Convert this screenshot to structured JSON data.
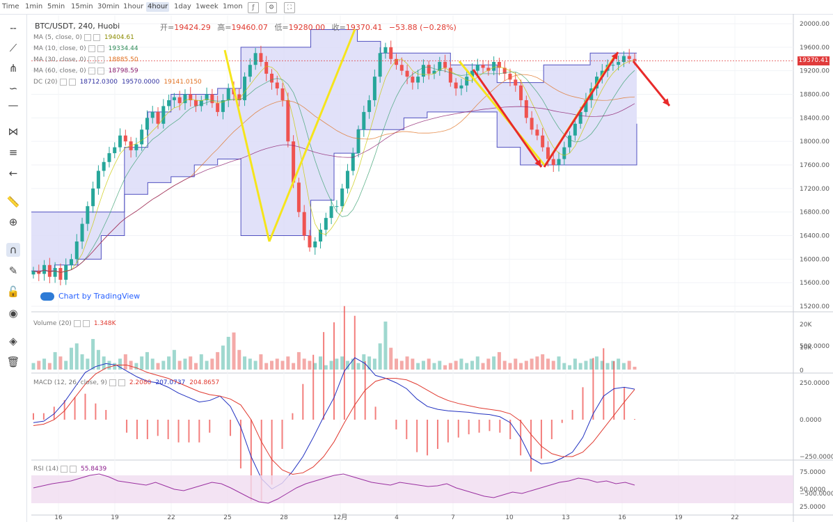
{
  "toolbar": {
    "timeframes": [
      "Time",
      "1min",
      "5min",
      "15min",
      "30min",
      "1hour",
      "4hour",
      "1day",
      "1week",
      "1mon"
    ],
    "active_timeframe": "4hour",
    "icons": [
      "indicators-icon",
      "settings-icon",
      "fullscreen-icon"
    ]
  },
  "left_tools": [
    "crosshair-icon",
    "trendline-icon",
    "pitchfork-icon",
    "brush-icon",
    "horizontal-line-icon",
    "pattern-icon",
    "fibonacci-icon",
    "arrow-back-icon",
    "ruler-icon",
    "zoom-icon",
    "magnet-icon",
    "lock-drawing-icon",
    "unlock-icon",
    "eye-icon",
    "layers-icon",
    "trash-icon"
  ],
  "header": {
    "pair": "BTC/USDT, 240, Huobi",
    "open_label": "开=",
    "open": "19424.29",
    "high_label": "高=",
    "high": "19460.07",
    "low_label": "低=",
    "low": "19280.00",
    "close_label": "收=",
    "close": "19370.41",
    "change": "−53.88 (−0.28%)"
  },
  "legend": [
    {
      "name": "MA (5, close, 0)",
      "value": "19404.61",
      "color": "#8b8b00"
    },
    {
      "name": "MA (10, close, 0)",
      "value": "19334.44",
      "color": "#2e8b57"
    },
    {
      "name": "MA (30, close, 0)",
      "value": "18885.50",
      "color": "#e07020"
    },
    {
      "name": "MA (60, close, 0)",
      "value": "18798.59",
      "color": "#8b1a6b"
    },
    {
      "name": "DC (20)",
      "value": "18712.0300",
      "value2": "19570.0000",
      "value3": "19141.0150",
      "color": "#3030a0"
    }
  ],
  "price_axis": [
    "20000.00",
    "19600.00",
    "19200.00",
    "18800.00",
    "18400.00",
    "18000.00",
    "17600.00",
    "17200.00",
    "16800.00",
    "16400.00",
    "16000.00",
    "15600.00",
    "15200.00"
  ],
  "last_price": "19370.41",
  "volume": {
    "label": "Volume (20)",
    "value": "1.348K",
    "axis": [
      "20K",
      "10K",
      "0"
    ]
  },
  "macd": {
    "label": "MACD (12, 26, close, 9)",
    "v1": "2.2080",
    "v2": "207.0737",
    "v3": "204.8657",
    "axis": [
      "500.0000",
      "250.0000",
      "0.0000",
      "−250.0000",
      "−500.0000"
    ]
  },
  "rsi": {
    "label": "RSI (14)",
    "value": "55.8439",
    "axis": [
      "75.0000",
      "50.0000",
      "25.0000"
    ]
  },
  "time_axis": [
    "16",
    "19",
    "22",
    "25",
    "28",
    "12月",
    "4",
    "7",
    "10",
    "13",
    "16",
    "19",
    "22"
  ],
  "watermark": "Chart by TradingView",
  "colors": {
    "up": "#26a69a",
    "down": "#ef5350",
    "channel_fill": "#dcdcf8",
    "channel_line": "#5050c0",
    "annotation_yellow": "#f5e51c",
    "annotation_red": "#e82a2a"
  },
  "chart_data": {
    "type": "candlestick",
    "close_series": [
      15800,
      15750,
      15900,
      15700,
      15850,
      15650,
      15900,
      16000,
      16300,
      16600,
      16900,
      17200,
      17500,
      17650,
      17800,
      17900,
      18100,
      18000,
      17850,
      17950,
      18200,
      18400,
      18500,
      18300,
      18600,
      18700,
      18750,
      18650,
      18800,
      18700,
      18600,
      18700,
      18800,
      18650,
      18500,
      18700,
      18900,
      18800,
      18700,
      19100,
      19300,
      19500,
      19350,
      19150,
      19000,
      18900,
      18700,
      18000,
      17300,
      16800,
      16400,
      16200,
      16300,
      16500,
      16700,
      16900,
      16900,
      17200,
      17500,
      17800,
      18200,
      18500,
      18700,
      19100,
      19500,
      19600,
      19400,
      19300,
      19200,
      19100,
      19000,
      19100,
      19300,
      19150,
      19200,
      19350,
      19250,
      19000,
      18900,
      18950,
      19100,
      19200,
      19300,
      19250,
      19200,
      19350,
      19250,
      19150,
      19050,
      18950,
      18700,
      18400,
      18200,
      18100,
      17900,
      17700,
      17600,
      17700,
      17900,
      18100,
      18300,
      18500,
      18700,
      18900,
      19100,
      19200,
      19300,
      19300,
      19350,
      19450,
      19400,
      19370
    ],
    "donchian_upper": [
      16800,
      16800,
      16800,
      16800,
      17900,
      18500,
      18800,
      18800,
      18900,
      19600,
      19600,
      19600,
      19900,
      19900,
      19700,
      19500,
      19500,
      19500,
      19300,
      19300,
      19000,
      19000,
      19300,
      19300,
      19500,
      19500,
      19500
    ],
    "donchian_lower": [
      15800,
      15900,
      16000,
      16400,
      17100,
      17300,
      17400,
      17600,
      17700,
      16400,
      16400,
      16400,
      17000,
      17800,
      18200,
      18200,
      18400,
      18500,
      18500,
      18500,
      17900,
      17600,
      17600,
      17600,
      17600,
      17600,
      18300
    ],
    "volume_series": [
      3,
      4,
      5,
      3,
      8,
      6,
      4,
      10,
      12,
      7,
      5,
      14,
      9,
      6,
      4,
      3,
      5,
      7,
      4,
      3,
      6,
      8,
      5,
      3,
      4,
      6,
      9,
      4,
      5,
      6,
      3,
      7,
      4,
      5,
      8,
      11,
      15,
      17,
      9,
      6,
      5,
      4,
      7,
      3,
      4,
      5,
      4,
      6,
      3,
      8,
      5,
      4,
      3,
      6,
      2,
      4,
      5,
      6,
      4,
      5,
      3,
      7,
      6,
      5,
      12,
      22,
      10,
      5,
      4,
      6,
      5,
      3,
      4,
      5,
      3,
      4,
      2,
      3,
      4,
      5,
      3,
      4,
      6,
      3,
      5,
      6,
      8,
      4,
      3,
      5,
      3,
      4,
      5,
      6,
      7,
      5,
      4,
      6,
      3,
      2,
      5,
      3,
      4,
      5,
      6,
      4,
      3,
      4,
      5,
      3,
      4,
      1.3
    ],
    "macd_line": [
      -20,
      -10,
      40,
      120,
      220,
      320,
      360,
      380,
      370,
      330,
      290,
      260,
      250,
      220,
      180,
      150,
      120,
      130,
      160,
      90,
      -50,
      -250,
      -400,
      -470,
      -430,
      -350,
      -250,
      -120,
      20,
      150,
      330,
      420,
      380,
      300,
      280,
      250,
      210,
      140,
      90,
      70,
      60,
      55,
      50,
      40,
      35,
      20,
      -20,
      -120,
      -260,
      -300,
      -290,
      -260,
      -220,
      -120,
      40,
      160,
      210,
      220,
      207
    ],
    "macd_signal": [
      -40,
      -30,
      0,
      60,
      150,
      240,
      310,
      350,
      370,
      370,
      350,
      320,
      300,
      280,
      250,
      220,
      190,
      170,
      160,
      140,
      100,
      0,
      -150,
      -270,
      -340,
      -370,
      -360,
      -320,
      -250,
      -150,
      -20,
      100,
      200,
      260,
      280,
      280,
      270,
      240,
      200,
      160,
      130,
      110,
      95,
      80,
      70,
      60,
      40,
      -10,
      -100,
      -180,
      -230,
      -250,
      -250,
      -220,
      -150,
      -60,
      30,
      120,
      205
    ],
    "rsi_series": [
      52,
      55,
      58,
      60,
      62,
      66,
      70,
      72,
      68,
      62,
      60,
      58,
      56,
      60,
      55,
      50,
      48,
      52,
      56,
      60,
      58,
      52,
      45,
      38,
      32,
      30,
      36,
      44,
      52,
      58,
      62,
      66,
      70,
      72,
      68,
      64,
      60,
      58,
      56,
      60,
      58,
      56,
      54,
      55,
      58,
      52,
      48,
      44,
      40,
      38,
      42,
      46,
      44,
      48,
      52,
      56,
      60,
      62,
      66,
      64,
      60,
      62,
      58,
      60,
      56
    ]
  }
}
